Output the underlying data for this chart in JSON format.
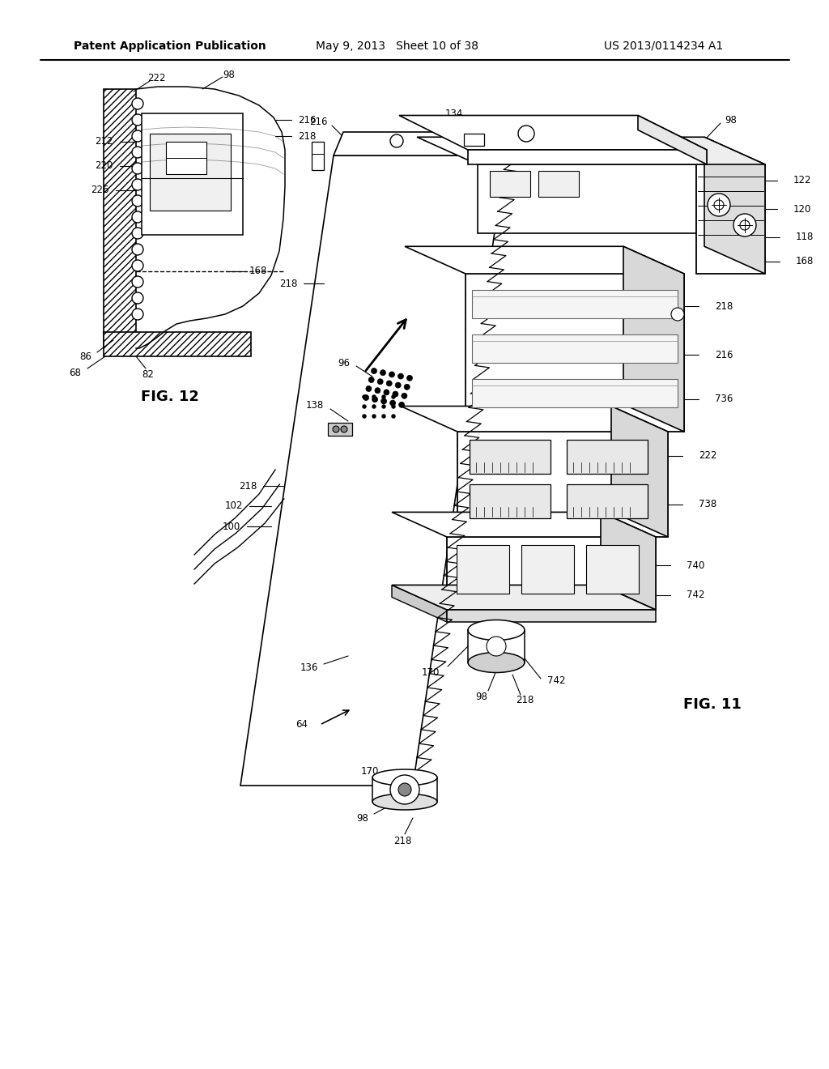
{
  "header_left": "Patent Application Publication",
  "header_center": "May 9, 2013   Sheet 10 of 38",
  "header_right": "US 2013/0114234 A1",
  "bg_color": "#ffffff",
  "fig11_label": "FIG. 11",
  "fig12_label": "FIG. 12"
}
